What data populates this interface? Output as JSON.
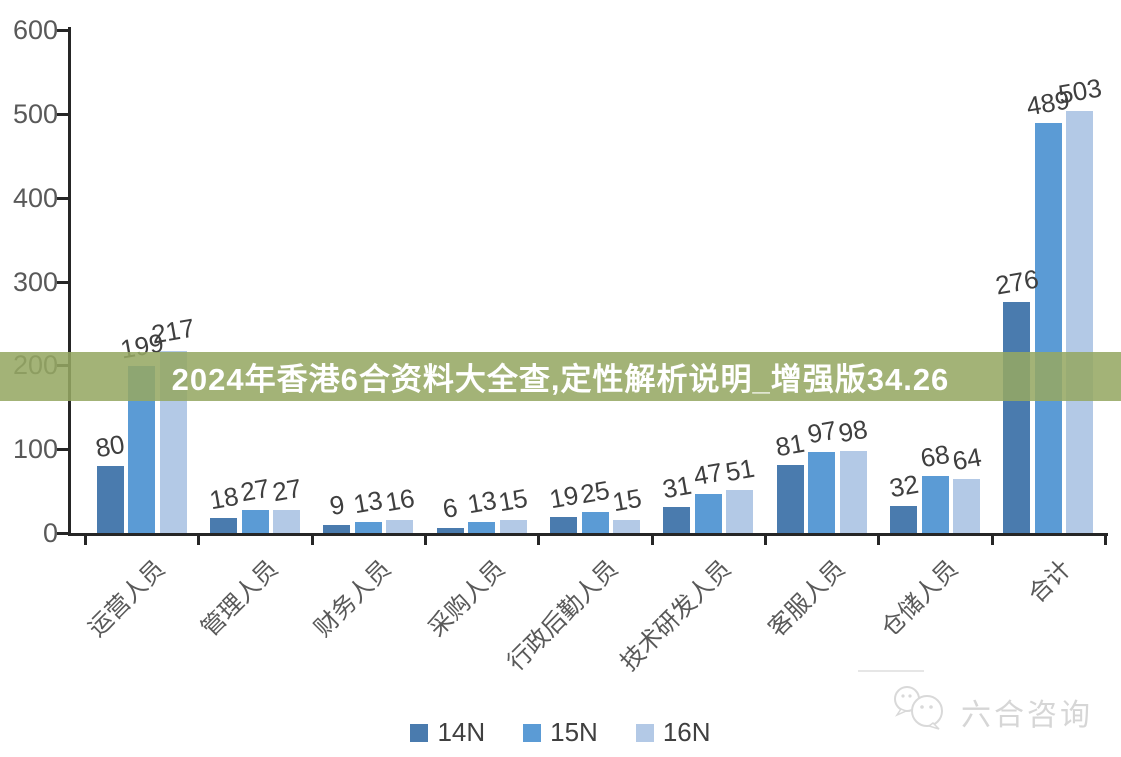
{
  "banner": {
    "title": "2024年香港6合资料大全查,定性解析说明_增强版34.26",
    "bg_color": "rgba(149,168,99,0.87)",
    "text_color": "#ffffff"
  },
  "chart_data": {
    "type": "bar",
    "title": "",
    "xlabel": "",
    "ylabel": "",
    "categories": [
      "运营人员",
      "管理人员",
      "财务人员",
      "采购人员",
      "行政后勤人员",
      "技术研发人员",
      "客服人员",
      "仓储人员",
      "合计"
    ],
    "series": [
      {
        "name": "14N",
        "color": "#4a7bae",
        "values": [
          80,
          18,
          9,
          6,
          19,
          31,
          81,
          32,
          276
        ]
      },
      {
        "name": "15N",
        "color": "#5b9bd5",
        "values": [
          199,
          27,
          13,
          13,
          25,
          47,
          97,
          68,
          489
        ]
      },
      {
        "name": "16N",
        "color": "#b3c9e6",
        "values": [
          217,
          27,
          16,
          15,
          15,
          51,
          98,
          64,
          503
        ]
      }
    ],
    "ylim": [
      0,
      600
    ],
    "yticks": [
      0,
      100,
      200,
      300,
      400,
      500,
      600
    ],
    "grid": false,
    "legend_position": "bottom",
    "value_labels": true,
    "category_label_rotation_deg": -45,
    "value_label_rotation_deg": -10
  },
  "watermark": {
    "text": "六合咨询",
    "icon": "wechat-chat-bubbles-icon",
    "color": "#d6d6d6"
  },
  "colors": {
    "axis": "#262626",
    "tick_label": "#595959",
    "value_label": "#3f3f3f",
    "category_label": "#595959",
    "legend_label": "#404040",
    "background": "#ffffff"
  }
}
